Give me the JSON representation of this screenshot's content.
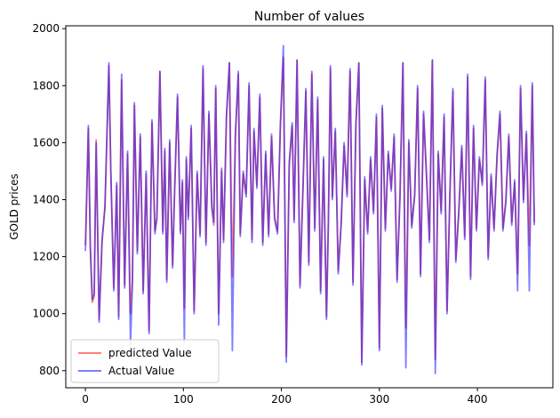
{
  "chart_data": {
    "type": "line",
    "title": "Number of values",
    "xlabel": "",
    "ylabel": "GOLD prices",
    "xlim": [
      -20,
      477
    ],
    "ylim": [
      740,
      2010
    ],
    "xticks": [
      0,
      100,
      200,
      300,
      400
    ],
    "yticks": [
      800,
      1000,
      1200,
      1400,
      1600,
      1800,
      2000
    ],
    "grid": false,
    "legend_position": "lower-left",
    "series": [
      {
        "name": "predicted Value",
        "color": "#ff0000",
        "alpha": 0.5,
        "x": [
          0,
          3,
          5,
          7,
          9,
          11,
          14,
          17,
          20,
          24,
          26,
          29,
          32,
          34,
          37,
          40,
          43,
          46,
          48,
          50,
          53,
          56,
          59,
          62,
          65,
          68,
          71,
          73,
          76,
          79,
          81,
          83,
          86,
          89,
          91,
          94,
          97,
          99,
          101,
          103,
          105,
          108,
          111,
          114,
          117,
          120,
          123,
          126,
          129,
          131,
          133,
          136,
          139,
          141,
          144,
          147,
          150,
          153,
          156,
          158,
          161,
          164,
          167,
          170,
          172,
          175,
          178,
          181,
          184,
          187,
          190,
          193,
          196,
          199,
          202,
          205,
          208,
          211,
          213,
          216,
          219,
          222,
          225,
          228,
          231,
          234,
          237,
          240,
          243,
          246,
          248,
          250,
          252,
          255,
          258,
          261,
          264,
          267,
          270,
          273,
          276,
          279,
          282,
          285,
          288,
          291,
          294,
          297,
          300,
          303,
          306,
          309,
          312,
          315,
          318,
          321,
          324,
          327,
          330,
          333,
          336,
          339,
          342,
          345,
          348,
          351,
          354,
          357,
          360,
          363,
          366,
          369,
          372,
          375,
          378,
          381,
          384,
          387,
          390,
          393,
          396,
          399,
          402,
          405,
          408,
          411,
          414,
          417,
          420,
          423,
          426,
          429,
          432,
          435,
          438,
          441,
          444,
          447,
          450,
          453,
          456,
          458
        ],
        "y": [
          1240,
          1650,
          1230,
          1040,
          1060,
          1610,
          980,
          1260,
          1370,
          1870,
          1500,
          1090,
          1450,
          990,
          1820,
          1100,
          1560,
          1000,
          1120,
          1730,
          1220,
          1620,
          1080,
          1490,
          940,
          1670,
          1290,
          1330,
          1850,
          1290,
          1570,
          1120,
          1600,
          1170,
          1420,
          1760,
          1290,
          1460,
          1020,
          1540,
          1340,
          1650,
          1010,
          1490,
          1280,
          1860,
          1250,
          1700,
          1380,
          1310,
          1790,
          1000,
          1500,
          1260,
          1690,
          1880,
          1130,
          1620,
          1840,
          1280,
          1490,
          1420,
          1800,
          1260,
          1640,
          1450,
          1760,
          1250,
          1560,
          1280,
          1620,
          1340,
          1290,
          1660,
          1900,
          850,
          1520,
          1660,
          1330,
          1890,
          1100,
          1430,
          1780,
          1180,
          1840,
          1300,
          1750,
          1080,
          1540,
          990,
          1340,
          1860,
          1410,
          1640,
          1150,
          1320,
          1590,
          1420,
          1850,
          1110,
          1660,
          1880,
          830,
          1470,
          1290,
          1540,
          1360,
          1690,
          880,
          1720,
          1300,
          1560,
          1440,
          1620,
          1120,
          1420,
          1880,
          950,
          1600,
          1310,
          1410,
          1790,
          1140,
          1700,
          1480,
          1260,
          1890,
          840,
          1560,
          1360,
          1690,
          1010,
          1420,
          1780,
          1190,
          1360,
          1580,
          1270,
          1830,
          1130,
          1650,
          1300,
          1540,
          1460,
          1820,
          1200,
          1480,
          1300,
          1550,
          1700,
          1300,
          1400,
          1620,
          1320,
          1460,
          1140,
          1790,
          1400,
          1630,
          1240,
          1800,
          1320
        ]
      },
      {
        "name": "Actual Value",
        "color": "#0000ff",
        "alpha": 0.5,
        "x": [
          0,
          3,
          5,
          7,
          9,
          11,
          14,
          17,
          20,
          24,
          26,
          29,
          32,
          34,
          37,
          40,
          43,
          46,
          48,
          50,
          53,
          56,
          59,
          62,
          65,
          68,
          71,
          73,
          76,
          79,
          81,
          83,
          86,
          89,
          91,
          94,
          97,
          99,
          101,
          103,
          105,
          108,
          111,
          114,
          117,
          120,
          123,
          126,
          129,
          131,
          133,
          136,
          139,
          141,
          144,
          147,
          150,
          153,
          156,
          158,
          161,
          164,
          167,
          170,
          172,
          175,
          178,
          181,
          184,
          187,
          190,
          193,
          196,
          199,
          202,
          205,
          208,
          211,
          213,
          216,
          219,
          222,
          225,
          228,
          231,
          234,
          237,
          240,
          243,
          246,
          248,
          250,
          252,
          255,
          258,
          261,
          264,
          267,
          270,
          273,
          276,
          279,
          282,
          285,
          288,
          291,
          294,
          297,
          300,
          303,
          306,
          309,
          312,
          315,
          318,
          321,
          324,
          327,
          330,
          333,
          336,
          339,
          342,
          345,
          348,
          351,
          354,
          357,
          360,
          363,
          366,
          369,
          372,
          375,
          378,
          381,
          384,
          387,
          390,
          393,
          396,
          399,
          402,
          405,
          408,
          411,
          414,
          417,
          420,
          423,
          426,
          429,
          432,
          435,
          438,
          441,
          444,
          447,
          450,
          453,
          456,
          458
        ],
        "y": [
          1220,
          1660,
          1240,
          1050,
          1070,
          1600,
          970,
          1250,
          1380,
          1880,
          1490,
          1080,
          1460,
          980,
          1840,
          1090,
          1570,
          890,
          1110,
          1740,
          1210,
          1630,
          1070,
          1500,
          930,
          1680,
          1280,
          1340,
          1850,
          1280,
          1580,
          1110,
          1610,
          1160,
          1430,
          1770,
          1280,
          1470,
          900,
          1550,
          1330,
          1660,
          1000,
          1500,
          1270,
          1870,
          1240,
          1710,
          1370,
          1320,
          1800,
          960,
          1510,
          1250,
          1700,
          1880,
          870,
          1630,
          1850,
          1270,
          1500,
          1410,
          1810,
          1250,
          1650,
          1440,
          1770,
          1240,
          1570,
          1270,
          1630,
          1330,
          1280,
          1670,
          1940,
          830,
          1530,
          1670,
          1320,
          1890,
          1090,
          1440,
          1790,
          1170,
          1850,
          1290,
          1760,
          1070,
          1550,
          980,
          1330,
          1870,
          1400,
          1650,
          1140,
          1310,
          1600,
          1410,
          1860,
          1100,
          1670,
          1880,
          820,
          1480,
          1280,
          1550,
          1350,
          1700,
          870,
          1730,
          1290,
          1570,
          1430,
          1630,
          1110,
          1410,
          1880,
          810,
          1610,
          1300,
          1420,
          1800,
          1130,
          1710,
          1490,
          1250,
          1890,
          790,
          1570,
          1350,
          1700,
          1000,
          1430,
          1790,
          1180,
          1350,
          1590,
          1260,
          1840,
          1120,
          1660,
          1290,
          1550,
          1450,
          1830,
          1190,
          1490,
          1290,
          1560,
          1710,
          1290,
          1390,
          1630,
          1310,
          1470,
          1080,
          1800,
          1390,
          1640,
          1080,
          1810,
          1310
        ]
      }
    ]
  }
}
